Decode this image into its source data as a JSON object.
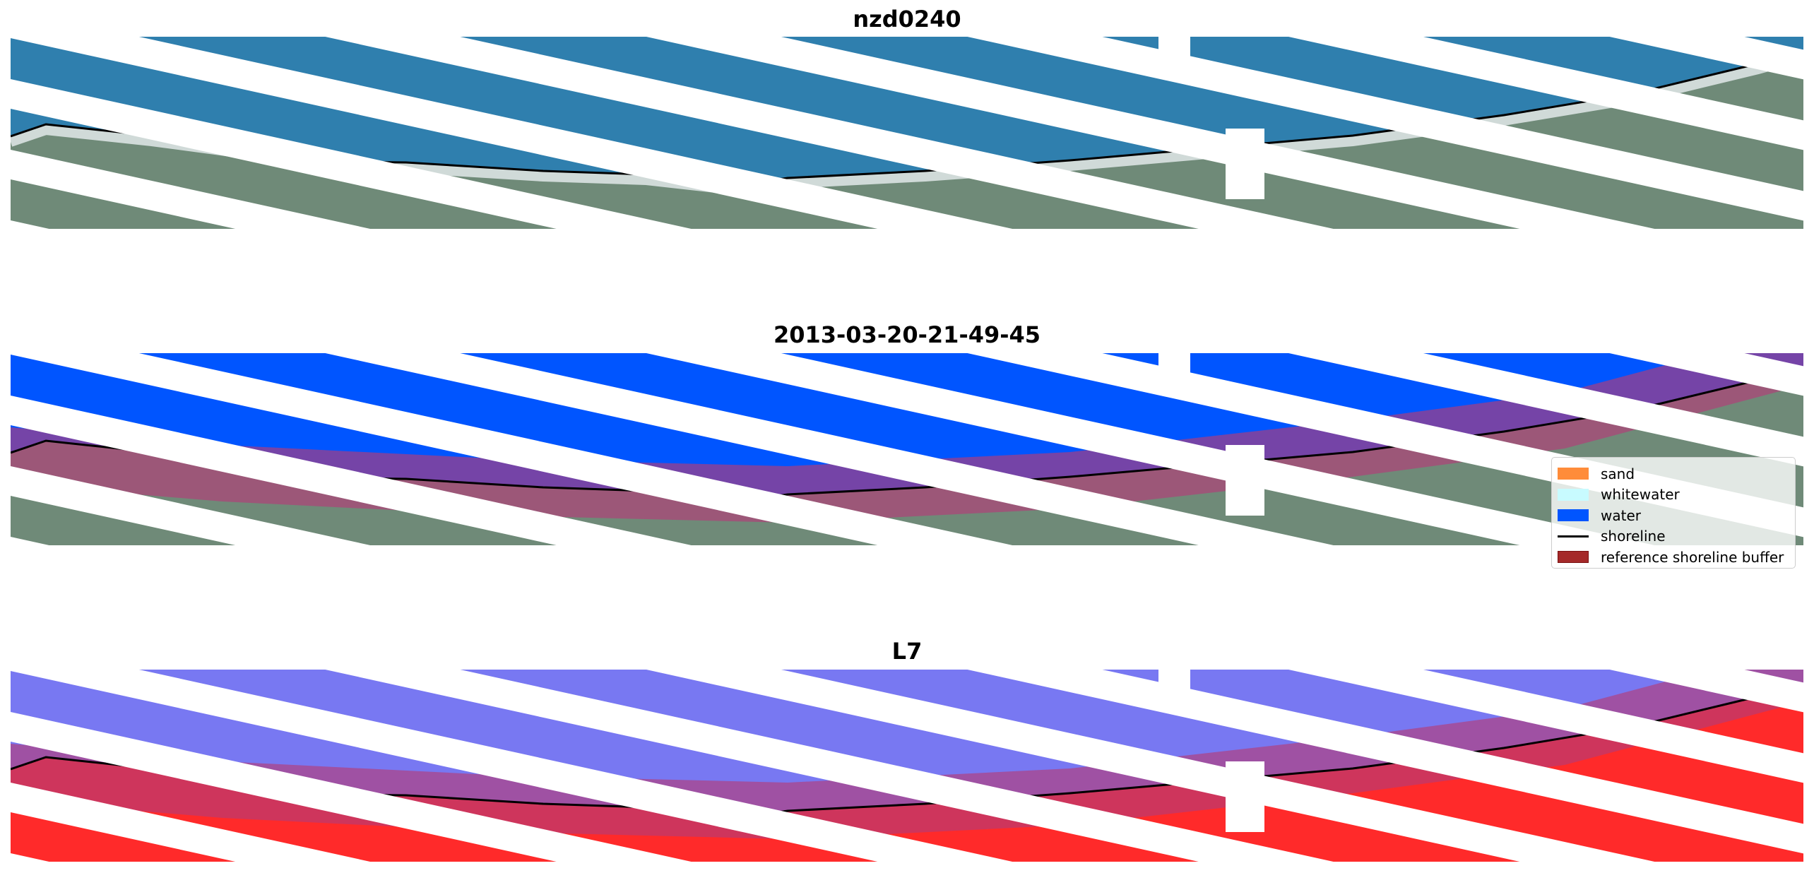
{
  "panels": [
    {
      "title": "nzd0240",
      "style": "rgb"
    },
    {
      "title": "2013-03-20-21-49-45",
      "style": "classified"
    },
    {
      "title": "L7",
      "style": "mndwi"
    }
  ],
  "legend": {
    "items": [
      {
        "label": "sand",
        "color": "#ff8c3a",
        "kind": "patch"
      },
      {
        "label": "whitewater",
        "color": "#c8fbff",
        "kind": "patch"
      },
      {
        "label": "water",
        "color": "#0055ff",
        "kind": "patch"
      },
      {
        "label": "shoreline",
        "color": "#000000",
        "kind": "line"
      },
      {
        "label": "reference shoreline buffer",
        "color": "#a52a2a",
        "kind": "patch"
      }
    ]
  },
  "colors": {
    "sea": "#2f7fae",
    "land": "#6f8a78",
    "water_class": "#0055ff",
    "buffer": "#b43c78",
    "index_water": "#7878f2",
    "index_land": "#ff2a2a",
    "shoreline": "#000000"
  }
}
